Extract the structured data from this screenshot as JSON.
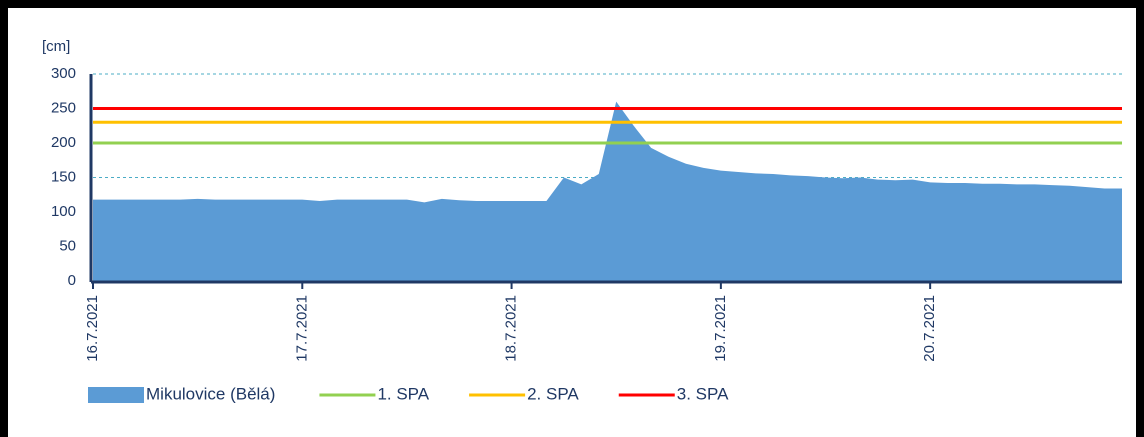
{
  "chart_data": {
    "type": "area",
    "y_label": "[cm]",
    "categories": [
      "16.7.2021",
      null,
      null,
      null,
      null,
      null,
      null,
      null,
      null,
      null,
      null,
      null,
      "17.7.2021",
      null,
      null,
      null,
      null,
      null,
      null,
      null,
      null,
      null,
      null,
      null,
      "18.7.2021",
      null,
      null,
      null,
      null,
      null,
      null,
      null,
      null,
      null,
      null,
      null,
      "19.7.2021",
      null,
      null,
      null,
      null,
      null,
      null,
      null,
      null,
      null,
      null,
      null,
      "20.7.2021",
      null,
      null,
      null,
      null,
      null,
      null,
      null,
      null,
      null,
      null,
      null
    ],
    "series": [
      {
        "name": "Mikulovice (Bělá)",
        "color": "#5b9bd5",
        "values": [
          118,
          118,
          118,
          118,
          118,
          118,
          119,
          118,
          118,
          118,
          118,
          118,
          118,
          116,
          118,
          118,
          118,
          118,
          118,
          114,
          119,
          117,
          116,
          116,
          116,
          116,
          116,
          150,
          140,
          155,
          260,
          225,
          193,
          180,
          170,
          164,
          160,
          158,
          156,
          155,
          153,
          152,
          150,
          149,
          150,
          147,
          146,
          147,
          143,
          142,
          142,
          141,
          141,
          140,
          140,
          139,
          138,
          136,
          134,
          134
        ]
      }
    ],
    "thresholds": [
      {
        "name": "1. SPA",
        "color": "#92d050",
        "value": 200
      },
      {
        "name": "2. SPA",
        "color": "#ffc000",
        "value": 230
      },
      {
        "name": "3. SPA",
        "color": "#ff0000",
        "value": 250
      }
    ],
    "ylim": [
      0,
      300
    ],
    "yticks": [
      0,
      50,
      100,
      150,
      200,
      250,
      300
    ],
    "grid": true
  }
}
